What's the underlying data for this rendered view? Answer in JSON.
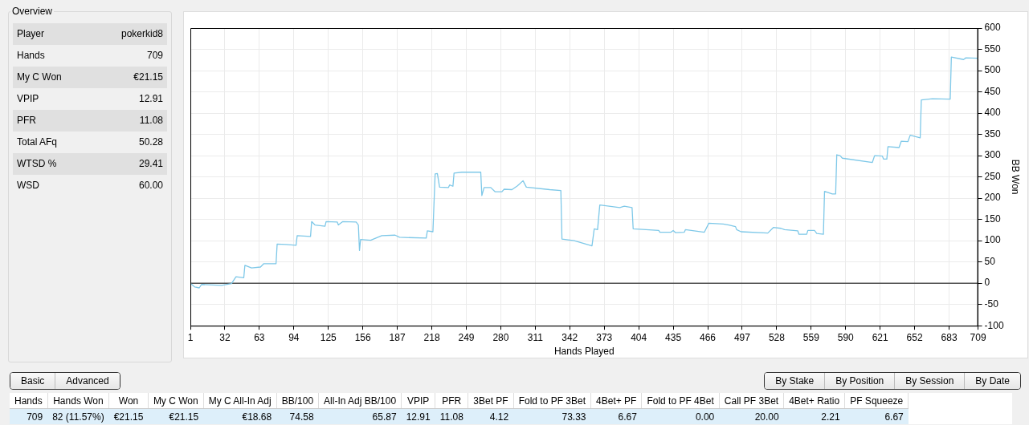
{
  "chart_data": [
    {
      "type": "other",
      "title": "Overview",
      "categories": [
        "Player",
        "Hands",
        "My C Won",
        "VPIP",
        "PFR",
        "Total AFq",
        "WTSD %",
        "WSD"
      ],
      "value_labels": [
        "pokerkid8",
        "709",
        "€21.15",
        "12.91",
        "11.08",
        "50.28",
        "29.41",
        "60.00"
      ]
    },
    {
      "type": "line",
      "xlabel": "Hands Played",
      "ylabel": "BB Won",
      "xlim": [
        1,
        709
      ],
      "ylim": [
        -100,
        600
      ],
      "xticks": [
        1,
        32,
        63,
        94,
        125,
        156,
        187,
        218,
        249,
        280,
        311,
        342,
        373,
        404,
        435,
        466,
        497,
        528,
        559,
        590,
        621,
        652,
        683,
        709
      ],
      "yticks": [
        -100,
        -50,
        0,
        50,
        100,
        150,
        200,
        250,
        300,
        350,
        400,
        450,
        500,
        550,
        600
      ],
      "grid": true,
      "legend": false,
      "marker": "none",
      "line_style": "solid",
      "ref_lines": [
        {
          "axis": "y",
          "value": 0,
          "color": "#000000"
        }
      ],
      "series": [
        {
          "color": "#7ec8e8",
          "x": [
            1,
            5,
            9,
            11,
            29,
            38,
            42,
            49,
            50,
            56,
            64,
            67,
            78,
            79,
            87,
            96,
            97,
            109,
            110,
            113,
            122,
            123,
            133,
            134,
            138,
            150,
            152,
            153,
            154,
            163,
            173,
            185,
            189,
            213,
            214,
            219,
            221,
            223,
            225,
            233,
            234,
            237,
            238,
            245,
            262,
            263,
            265,
            271,
            275,
            281,
            283,
            290,
            295,
            300,
            303,
            324,
            334,
            335,
            346,
            362,
            364,
            367,
            369,
            387,
            391,
            398,
            399,
            422,
            423,
            433,
            435,
            437,
            445,
            446,
            463,
            467,
            480,
            485,
            491,
            492,
            496,
            520,
            525,
            532,
            535,
            547,
            548,
            555,
            556,
            562,
            564,
            570,
            571,
            578,
            581,
            582,
            585,
            587,
            614,
            616,
            623,
            624,
            627,
            628,
            638,
            640,
            646,
            648,
            657,
            658,
            668,
            684,
            685,
            696,
            698,
            709
          ],
          "values": [
            0,
            -9,
            -11,
            -3,
            -5,
            -1,
            15,
            13,
            42,
            36,
            38,
            46,
            46,
            92,
            91,
            89,
            112,
            110,
            145,
            137,
            134,
            145,
            144,
            137,
            145,
            144,
            137,
            77,
            103,
            101,
            112,
            113,
            108,
            106,
            123,
            121,
            257,
            258,
            226,
            225,
            231,
            228,
            259,
            261,
            261,
            206,
            225,
            225,
            215,
            215,
            221,
            220,
            229,
            241,
            226,
            220,
            218,
            104,
            100,
            88,
            128,
            126,
            184,
            178,
            181,
            178,
            128,
            124,
            120,
            120,
            124,
            119,
            120,
            126,
            120,
            141,
            139,
            137,
            133,
            126,
            121,
            118,
            131,
            129,
            126,
            123,
            115,
            115,
            124,
            124,
            117,
            115,
            216,
            210,
            210,
            302,
            300,
            294,
            284,
            300,
            299,
            292,
            292,
            321,
            319,
            334,
            333,
            348,
            342,
            431,
            434,
            433,
            532,
            526,
            530,
            529
          ]
        }
      ]
    },
    {
      "type": "other",
      "annotations": [
        "Basic",
        "Advanced"
      ]
    },
    {
      "type": "other",
      "annotations": [
        "By Stake",
        "By Position",
        "By Session",
        "By Date"
      ]
    },
    {
      "type": "other",
      "categories": [
        "Hands",
        "Hands Won",
        "Won",
        "My C Won",
        "My C All-In Adj",
        "BB/100",
        "All-In Adj BB/100",
        "VPIP",
        "PFR",
        "3Bet PF",
        "Fold to PF 3Bet",
        "4Bet+ PF",
        "Fold to PF 4Bet",
        "Call PF 3Bet",
        "4Bet+ Ratio",
        "PF Squeeze"
      ],
      "value_labels": [
        "709",
        "82 (11.57%)",
        "€21.15",
        "€21.15",
        "€18.68",
        "74.58",
        "65.87",
        "12.91",
        "11.08",
        "4.12",
        "73.33",
        "6.67",
        "0.00",
        "20.00",
        "2.21",
        "6.67"
      ]
    }
  ]
}
